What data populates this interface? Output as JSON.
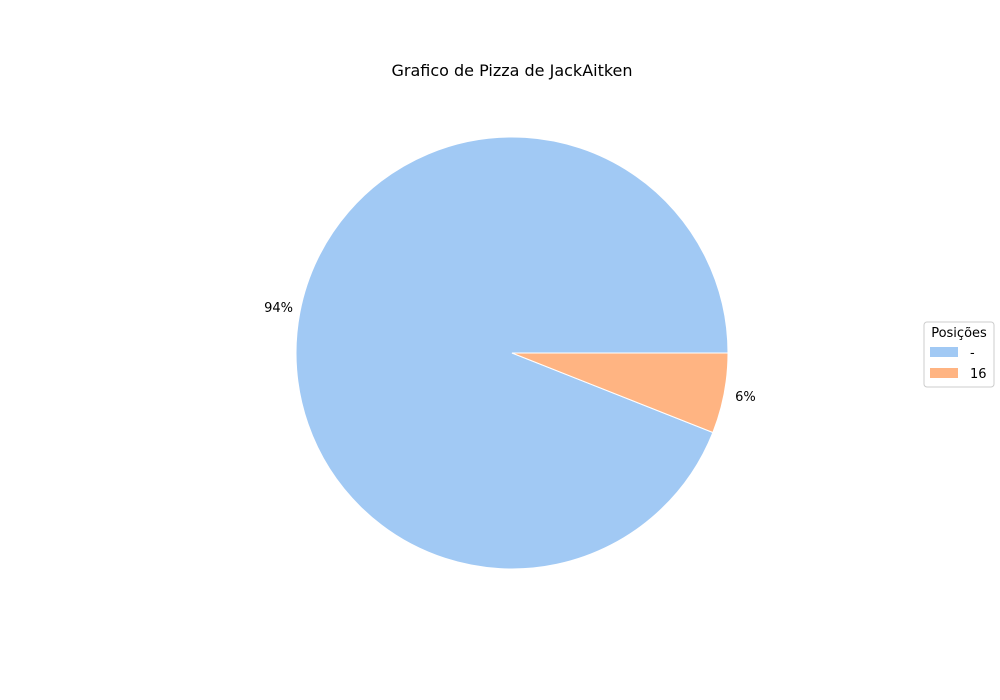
{
  "chart_data": {
    "type": "pie",
    "title": "Grafico de Pizza de JackAitken",
    "categories": [
      "-",
      "16"
    ],
    "values": [
      94,
      6
    ],
    "labels": [
      "94%",
      "6%"
    ],
    "colors": [
      "#a1c9f4",
      "#ffb482"
    ],
    "legend": {
      "title": "Posições",
      "entries": [
        "-",
        "16"
      ],
      "placement": "center-right"
    }
  }
}
